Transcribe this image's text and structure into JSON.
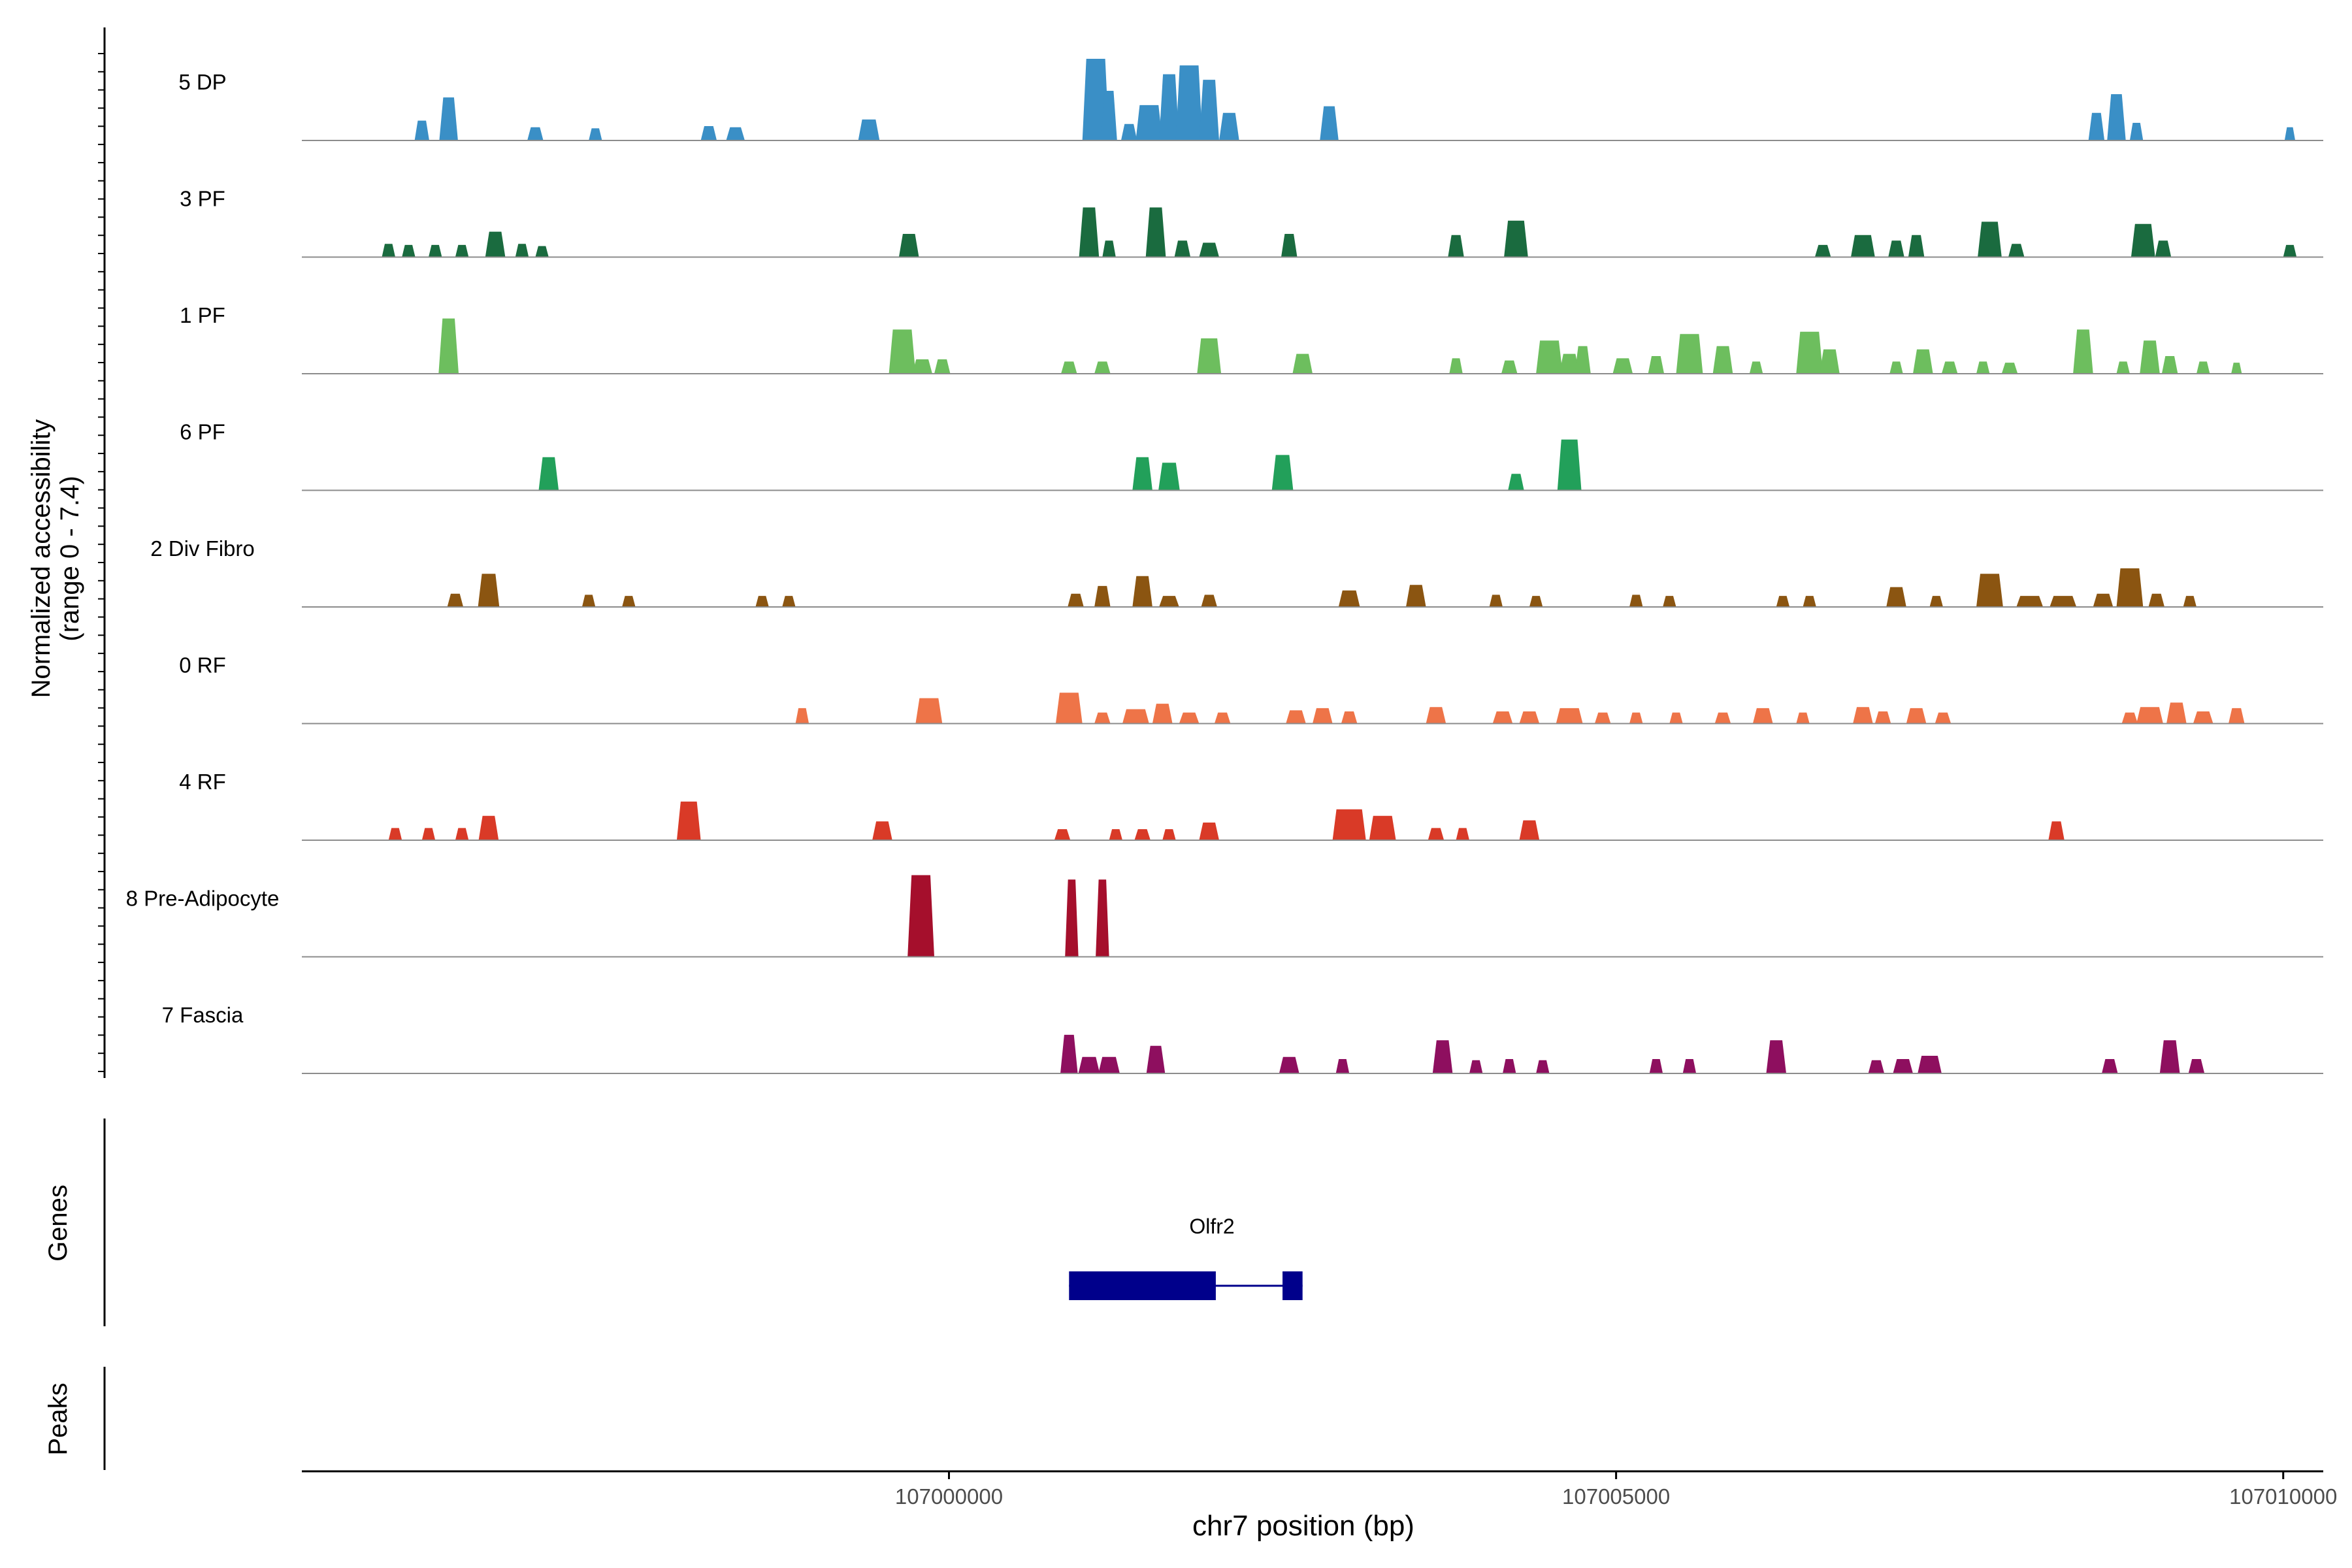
{
  "chart_data": {
    "type": "area",
    "title": "",
    "ylabel": "Normalized accessibility",
    "ylabel_range": "(range 0 - 7.4)",
    "y_range": [
      0,
      7.4
    ],
    "xlabel": "chr7 position (bp)",
    "x_range": [
      106995150,
      107010300
    ],
    "x_ticks": [
      107000000,
      107005000,
      107010000
    ],
    "x_tick_labels": [
      "107000000",
      "107005000",
      "107010000"
    ],
    "grid": false,
    "tracks": [
      {
        "name": "5 DP",
        "color": "#3A8FC6",
        "peaks": [
          [
            106996050,
            110,
            1.8
          ],
          [
            106996250,
            140,
            3.9
          ],
          [
            106996900,
            120,
            1.2
          ],
          [
            106997350,
            100,
            1.1
          ],
          [
            106998200,
            120,
            1.3
          ],
          [
            106998400,
            140,
            1.2
          ],
          [
            106999400,
            160,
            1.9
          ],
          [
            107001100,
            200,
            7.4
          ],
          [
            107001200,
            120,
            4.5
          ],
          [
            107001350,
            120,
            1.5
          ],
          [
            107001500,
            200,
            3.2
          ],
          [
            107001650,
            150,
            6.0
          ],
          [
            107001800,
            200,
            6.8
          ],
          [
            107001950,
            150,
            5.5
          ],
          [
            107002100,
            150,
            2.5
          ],
          [
            107002850,
            140,
            3.1
          ],
          [
            107008600,
            120,
            2.5
          ],
          [
            107008750,
            140,
            4.2
          ],
          [
            107008900,
            100,
            1.6
          ],
          [
            107010050,
            80,
            1.2
          ]
        ]
      },
      {
        "name": "3 PF",
        "color": "#1A6B3F",
        "peaks": [
          [
            106995800,
            100,
            1.2
          ],
          [
            106995950,
            100,
            1.1
          ],
          [
            106996150,
            100,
            1.1
          ],
          [
            106996350,
            100,
            1.1
          ],
          [
            106996600,
            150,
            2.3
          ],
          [
            106996800,
            100,
            1.2
          ],
          [
            106996950,
            100,
            1.0
          ],
          [
            106999700,
            150,
            2.1
          ],
          [
            107001050,
            150,
            4.5
          ],
          [
            107001200,
            100,
            1.5
          ],
          [
            107001550,
            150,
            4.5
          ],
          [
            107001750,
            120,
            1.5
          ],
          [
            107001950,
            150,
            1.3
          ],
          [
            107002550,
            120,
            2.1
          ],
          [
            107003800,
            120,
            2.0
          ],
          [
            107004250,
            180,
            3.3
          ],
          [
            107006550,
            120,
            1.1
          ],
          [
            107006850,
            180,
            2.0
          ],
          [
            107007100,
            120,
            1.5
          ],
          [
            107007250,
            120,
            2.0
          ],
          [
            107007800,
            180,
            3.2
          ],
          [
            107008000,
            120,
            1.2
          ],
          [
            107008950,
            180,
            3.0
          ],
          [
            107009100,
            120,
            1.5
          ],
          [
            107010050,
            100,
            1.1
          ]
        ]
      },
      {
        "name": "1 PF",
        "color": "#6DBE5E",
        "peaks": [
          [
            106996250,
            150,
            5.0
          ],
          [
            106999650,
            200,
            4.0
          ],
          [
            106999800,
            150,
            1.3
          ],
          [
            106999950,
            120,
            1.3
          ],
          [
            107000900,
            120,
            1.1
          ],
          [
            107001150,
            120,
            1.1
          ],
          [
            107001950,
            180,
            3.2
          ],
          [
            107002650,
            150,
            1.8
          ],
          [
            107003800,
            100,
            1.4
          ],
          [
            107004200,
            120,
            1.2
          ],
          [
            107004500,
            200,
            3.0
          ],
          [
            107004650,
            150,
            1.8
          ],
          [
            107004750,
            120,
            2.5
          ],
          [
            107005050,
            150,
            1.4
          ],
          [
            107005300,
            120,
            1.6
          ],
          [
            107005550,
            200,
            3.6
          ],
          [
            107005800,
            150,
            2.5
          ],
          [
            107006050,
            100,
            1.1
          ],
          [
            107006450,
            200,
            3.8
          ],
          [
            107006600,
            150,
            2.2
          ],
          [
            107007100,
            100,
            1.1
          ],
          [
            107007300,
            150,
            2.2
          ],
          [
            107007500,
            120,
            1.1
          ],
          [
            107007750,
            100,
            1.1
          ],
          [
            107007950,
            120,
            1.0
          ],
          [
            107008500,
            150,
            4.0
          ],
          [
            107008800,
            100,
            1.1
          ],
          [
            107009000,
            150,
            3.0
          ],
          [
            107009150,
            120,
            1.6
          ],
          [
            107009400,
            100,
            1.1
          ],
          [
            107009650,
            80,
            1.0
          ]
        ]
      },
      {
        "name": "6 PF",
        "color": "#22A05A",
        "peaks": [
          [
            106997000,
            150,
            3.0
          ],
          [
            107001450,
            150,
            3.0
          ],
          [
            107001650,
            160,
            2.5
          ],
          [
            107002500,
            160,
            3.2
          ],
          [
            107004250,
            120,
            1.5
          ],
          [
            107004650,
            180,
            4.6
          ]
        ]
      },
      {
        "name": "2 Div Fibro",
        "color": "#8B5511",
        "peaks": [
          [
            106996300,
            120,
            1.2
          ],
          [
            106996550,
            160,
            3.0
          ],
          [
            106997300,
            100,
            1.1
          ],
          [
            106997600,
            100,
            1.0
          ],
          [
            106998600,
            100,
            1.0
          ],
          [
            106998800,
            100,
            1.0
          ],
          [
            107000950,
            120,
            1.2
          ],
          [
            107001150,
            120,
            1.9
          ],
          [
            107001450,
            150,
            2.8
          ],
          [
            107001650,
            150,
            1.0
          ],
          [
            107001950,
            120,
            1.1
          ],
          [
            107003000,
            160,
            1.5
          ],
          [
            107003500,
            150,
            2.0
          ],
          [
            107004100,
            100,
            1.1
          ],
          [
            107004400,
            100,
            1.0
          ],
          [
            107005150,
            100,
            1.1
          ],
          [
            107005400,
            100,
            1.0
          ],
          [
            107006250,
            100,
            1.0
          ],
          [
            107006450,
            100,
            1.0
          ],
          [
            107007100,
            150,
            1.8
          ],
          [
            107007400,
            100,
            1.0
          ],
          [
            107007800,
            200,
            3.0
          ],
          [
            107008100,
            200,
            1.0
          ],
          [
            107008350,
            200,
            1.0
          ],
          [
            107008650,
            150,
            1.2
          ],
          [
            107008850,
            200,
            3.5
          ],
          [
            107009050,
            120,
            1.2
          ],
          [
            107009300,
            100,
            1.0
          ]
        ]
      },
      {
        "name": "0 RF",
        "color": "#EE7448",
        "peaks": [
          [
            106998900,
            100,
            1.4
          ],
          [
            106999850,
            200,
            2.3
          ],
          [
            107000900,
            200,
            2.8
          ],
          [
            107001150,
            120,
            1.0
          ],
          [
            107001400,
            200,
            1.3
          ],
          [
            107001600,
            150,
            1.8
          ],
          [
            107001800,
            150,
            1.0
          ],
          [
            107002050,
            120,
            1.0
          ],
          [
            107002600,
            150,
            1.2
          ],
          [
            107002800,
            150,
            1.4
          ],
          [
            107003000,
            120,
            1.1
          ],
          [
            107003650,
            150,
            1.5
          ],
          [
            107004150,
            150,
            1.1
          ],
          [
            107004350,
            150,
            1.1
          ],
          [
            107004650,
            200,
            1.4
          ],
          [
            107004900,
            120,
            1.0
          ],
          [
            107005150,
            100,
            1.0
          ],
          [
            107005450,
            100,
            1.0
          ],
          [
            107005800,
            120,
            1.0
          ],
          [
            107006100,
            150,
            1.4
          ],
          [
            107006400,
            100,
            1.0
          ],
          [
            107006850,
            150,
            1.5
          ],
          [
            107007000,
            120,
            1.1
          ],
          [
            107007250,
            150,
            1.4
          ],
          [
            107007450,
            120,
            1.0
          ],
          [
            107008850,
            120,
            1.0
          ],
          [
            107009000,
            200,
            1.5
          ],
          [
            107009200,
            150,
            1.9
          ],
          [
            107009400,
            150,
            1.1
          ],
          [
            107009650,
            120,
            1.4
          ]
        ]
      },
      {
        "name": "4 RF",
        "color": "#D93A27",
        "peaks": [
          [
            106995850,
            100,
            1.1
          ],
          [
            106996100,
            100,
            1.1
          ],
          [
            106996350,
            100,
            1.1
          ],
          [
            106996550,
            150,
            2.2
          ],
          [
            106998050,
            180,
            3.5
          ],
          [
            106999500,
            150,
            1.7
          ],
          [
            107000850,
            120,
            1.0
          ],
          [
            107001250,
            100,
            1.0
          ],
          [
            107001450,
            120,
            1.0
          ],
          [
            107001650,
            100,
            1.0
          ],
          [
            107001950,
            150,
            1.6
          ],
          [
            107003000,
            250,
            2.8
          ],
          [
            107003250,
            200,
            2.2
          ],
          [
            107003650,
            120,
            1.1
          ],
          [
            107003850,
            100,
            1.1
          ],
          [
            107004350,
            150,
            1.8
          ],
          [
            107008300,
            120,
            1.7
          ]
        ]
      },
      {
        "name": "8 Pre-Adipocyte",
        "color": "#A50F2C",
        "peaks": [
          [
            106999790,
            200,
            7.4
          ],
          [
            107000920,
            100,
            7.0
          ],
          [
            107001150,
            100,
            7.0
          ]
        ]
      },
      {
        "name": "7 Fascia",
        "color": "#8E0F5F",
        "peaks": [
          [
            107000900,
            130,
            3.5
          ],
          [
            107001050,
            160,
            1.5
          ],
          [
            107001200,
            160,
            1.5
          ],
          [
            107001550,
            140,
            2.5
          ],
          [
            107002550,
            150,
            1.5
          ],
          [
            107002950,
            100,
            1.3
          ],
          [
            107003700,
            150,
            3.0
          ],
          [
            107003950,
            100,
            1.2
          ],
          [
            107004200,
            100,
            1.3
          ],
          [
            107004450,
            100,
            1.2
          ],
          [
            107005300,
            100,
            1.3
          ],
          [
            107005550,
            100,
            1.3
          ],
          [
            107006200,
            150,
            3.0
          ],
          [
            107006950,
            120,
            1.2
          ],
          [
            107007150,
            150,
            1.3
          ],
          [
            107007350,
            180,
            1.6
          ],
          [
            107008700,
            120,
            1.3
          ],
          [
            107009150,
            150,
            3.0
          ],
          [
            107009350,
            120,
            1.3
          ]
        ]
      }
    ],
    "gene": {
      "name": "Olfr2",
      "start": 107000900,
      "end": 107002650,
      "exons": [
        [
          107000900,
          107002000
        ],
        [
          107002500,
          107002650
        ]
      ],
      "color": "#00008B"
    },
    "genes_label": "Genes",
    "peaks_label": "Peaks"
  }
}
